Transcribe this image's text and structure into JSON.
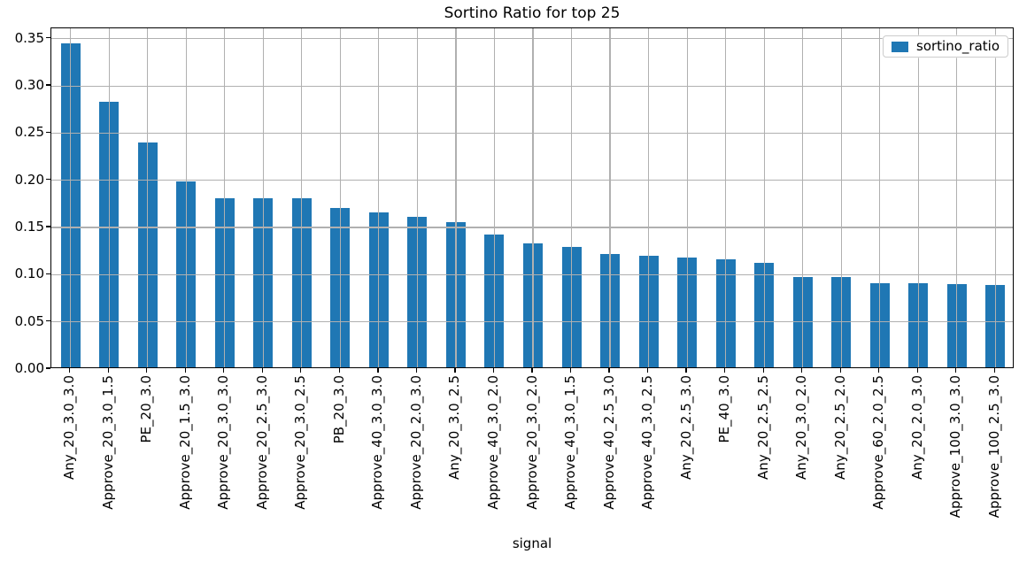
{
  "chart_data": {
    "type": "bar",
    "title": "Sortino Ratio for top 25",
    "xlabel": "signal",
    "ylabel": "",
    "legend_label": "sortino_ratio",
    "legend_position": "upper right",
    "grid": true,
    "grid_on_top": true,
    "bar_color": "#1f77b4",
    "grid_color": "#b0b0b0",
    "axis_color": "#000000",
    "ylim": [
      0,
      0.361
    ],
    "yticks": [
      0.0,
      0.05,
      0.1,
      0.15,
      0.2,
      0.25,
      0.3,
      0.35
    ],
    "categories": [
      "Any_20_3.0_3.0",
      "Approve_20_3.0_1.5",
      "PE_20_3.0",
      "Approve_20_1.5_3.0",
      "Approve_20_3.0_3.0",
      "Approve_20_2.5_3.0",
      "Approve_20_3.0_2.5",
      "PB_20_3.0",
      "Approve_40_3.0_3.0",
      "Approve_20_2.0_3.0",
      "Any_20_3.0_2.5",
      "Approve_40_3.0_2.0",
      "Approve_20_3.0_2.0",
      "Approve_40_3.0_1.5",
      "Approve_40_2.5_3.0",
      "Approve_40_3.0_2.5",
      "Any_20_2.5_3.0",
      "PE_40_3.0",
      "Any_20_2.5_2.5",
      "Any_20_3.0_2.0",
      "Any_20_2.5_2.0",
      "Approve_60_2.0_2.5",
      "Any_20_2.0_3.0",
      "Approve_100_3.0_3.0",
      "Approve_100_2.5_3.0"
    ],
    "values": [
      0.343,
      0.281,
      0.238,
      0.197,
      0.179,
      0.179,
      0.179,
      0.169,
      0.164,
      0.159,
      0.154,
      0.141,
      0.131,
      0.128,
      0.12,
      0.118,
      0.116,
      0.114,
      0.111,
      0.096,
      0.096,
      0.089,
      0.089,
      0.088,
      0.087
    ]
  }
}
